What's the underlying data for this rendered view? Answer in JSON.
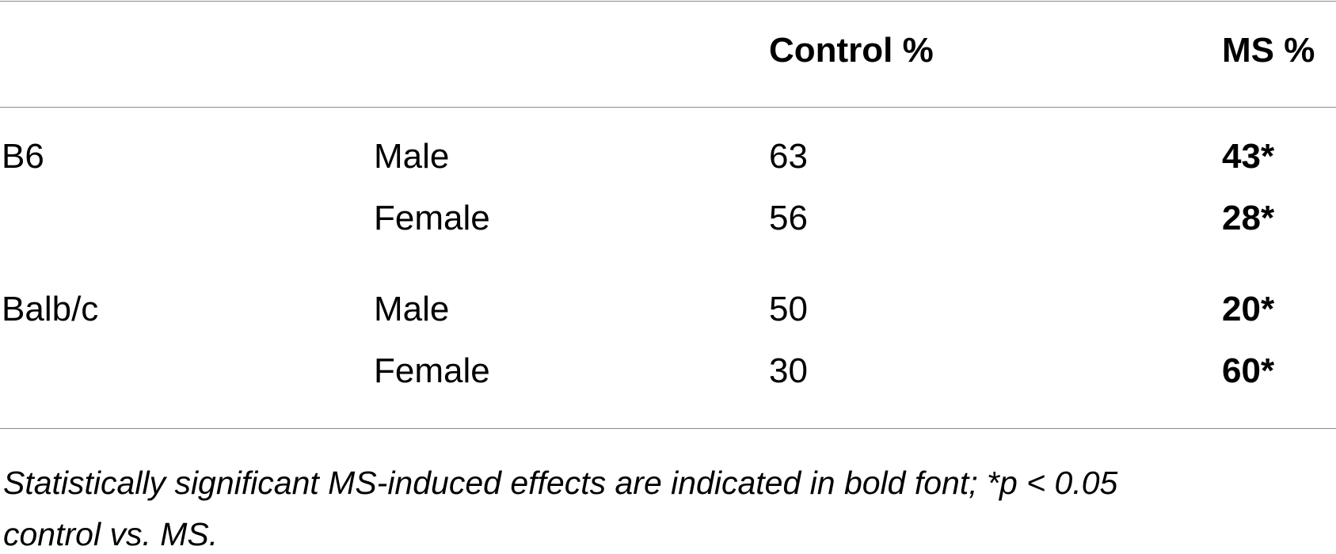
{
  "table": {
    "headers": [
      "",
      "",
      "Control %",
      "MS %"
    ],
    "rows": [
      {
        "strain": "B6",
        "sex": "Male",
        "control": "63",
        "ms": "43*"
      },
      {
        "strain": "",
        "sex": "Female",
        "control": "56",
        "ms": "28*"
      },
      {
        "strain": "Balb/c",
        "sex": "Male",
        "control": "50",
        "ms": "20*"
      },
      {
        "strain": "",
        "sex": "Female",
        "control": "30",
        "ms": "60*"
      }
    ]
  },
  "footnote": {
    "line1": "Statistically significant MS-induced effects are indicated in bold font; *p < 0.05",
    "line2": "control vs. MS."
  }
}
